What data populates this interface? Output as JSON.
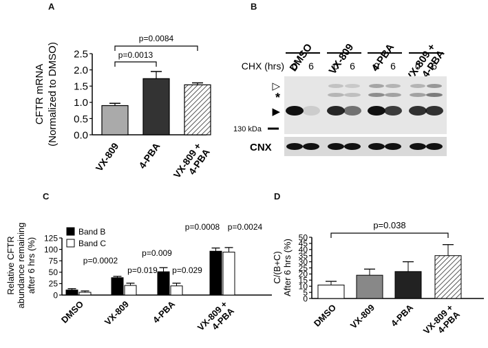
{
  "panels": {
    "A": {
      "label": "A"
    },
    "B": {
      "label": "B"
    },
    "C": {
      "label": "C"
    },
    "D": {
      "label": "D"
    }
  },
  "chart_data": [
    {
      "panel": "A",
      "type": "bar",
      "categories": [
        "VX-809",
        "4-PBA",
        "VX-809 +\n4-PBA"
      ],
      "values": [
        0.9,
        1.73,
        1.54
      ],
      "errors": [
        0.07,
        0.22,
        0.06
      ],
      "fills": [
        "#aaaaaa",
        "#333333",
        "hatch"
      ],
      "ylabel": "CFTR mRNA\n(Normalized to DMSO)",
      "ylim": [
        0,
        2.5
      ],
      "yticks": [
        "0.0",
        "0.5",
        "1.0",
        "1.5",
        "2.0",
        "2.5"
      ],
      "annotations": [
        {
          "text": "p=0.0013",
          "from": 0,
          "to": 1
        },
        {
          "text": "p=0.0084",
          "from": 0,
          "to": 2
        }
      ]
    },
    {
      "panel": "C",
      "type": "bar",
      "categories": [
        "DMSO",
        "VX-809",
        "4-PBA",
        "VX-809 +\n4-PBA"
      ],
      "series": [
        {
          "name": "Band B",
          "values": [
            11,
            38,
            51,
            96
          ],
          "errors": [
            3,
            3,
            9,
            7
          ],
          "color": "#000000"
        },
        {
          "name": "Band C",
          "values": [
            6,
            21,
            20,
            94
          ],
          "errors": [
            3,
            5,
            6,
            10
          ],
          "color": "#ffffff"
        }
      ],
      "ylabel": "Relative CFTR\nabundance remaining\nafter 6 hrs (%)",
      "ylim": [
        0,
        125
      ],
      "yticks": [
        "0",
        "25",
        "50",
        "75",
        "100",
        "125"
      ],
      "annotations": [
        {
          "text": "p=0.0002",
          "group": 1,
          "series": 0
        },
        {
          "text": "p=0.019",
          "group": 1,
          "series": 1
        },
        {
          "text": "p=0.009",
          "group": 2,
          "series": 0
        },
        {
          "text": "p=0.029",
          "group": 2,
          "series": 1
        },
        {
          "text": "p=0.0008",
          "group": 3,
          "series": 0
        },
        {
          "text": "p=0.0024",
          "group": 3,
          "series": 1
        }
      ],
      "legend": "top-left"
    },
    {
      "panel": "D",
      "type": "bar",
      "categories": [
        "DMSO",
        "VX-809",
        "4-PBA",
        "VX-809 +\n4-PBA"
      ],
      "values": [
        11,
        19,
        22,
        35
      ],
      "errors": [
        3,
        5,
        8,
        9
      ],
      "fills": [
        "#ffffff",
        "#888888",
        "#222222",
        "hatch"
      ],
      "ylabel": "C/(B+C)\nAfter 6 hrs (%)",
      "ylim": [
        0,
        50
      ],
      "yticks": [
        "0",
        "5",
        "10",
        "15",
        "20",
        "25",
        "30",
        "35",
        "40",
        "45",
        "50"
      ],
      "annotations": [
        {
          "text": "p=0.038",
          "from": 0,
          "to": 3
        }
      ]
    }
  ],
  "blot": {
    "groups": [
      "DMSO",
      "VX-809",
      "4-PBA",
      "VX-809 +\n4-PBA"
    ],
    "cycloheximide_label": "CHX (hrs)",
    "times": [
      "0",
      "6",
      "0",
      "6",
      "0",
      "6",
      "0",
      "6"
    ],
    "marker_open_arrow": "▷",
    "marker_star": "*",
    "marker_filled_arrow": "▶",
    "size_marker": "130 kDa",
    "loading_control": "CNX"
  }
}
